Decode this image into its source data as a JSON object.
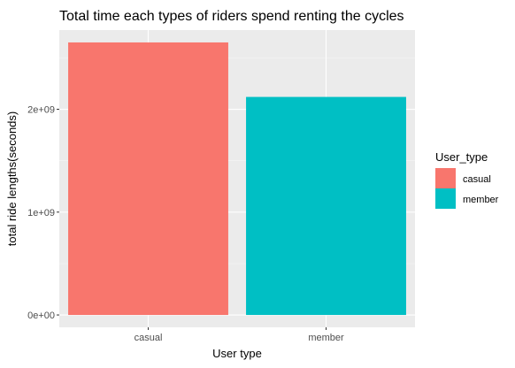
{
  "chart_data": {
    "type": "bar",
    "title": "Total time each types of riders spend renting the cycles",
    "xlabel": "User type",
    "ylabel": "total ride lengths(seconds)",
    "categories": [
      "casual",
      "member"
    ],
    "values": [
      2650000000,
      2120000000
    ],
    "ylim": [
      -120000000,
      2770000000
    ],
    "yticks": [
      0,
      1000000000,
      2000000000
    ],
    "ytick_labels": [
      "0e+00",
      "1e+09",
      "2e+09"
    ],
    "grid": true,
    "legend": {
      "title": "User_type",
      "position": "right",
      "entries": [
        "casual",
        "member"
      ]
    },
    "colors": {
      "casual": "#F8766D",
      "member": "#00BFC4",
      "panel": "#EBEBEB",
      "grid_major": "#FFFFFF",
      "grid_minor": "#F5F5F5"
    }
  }
}
